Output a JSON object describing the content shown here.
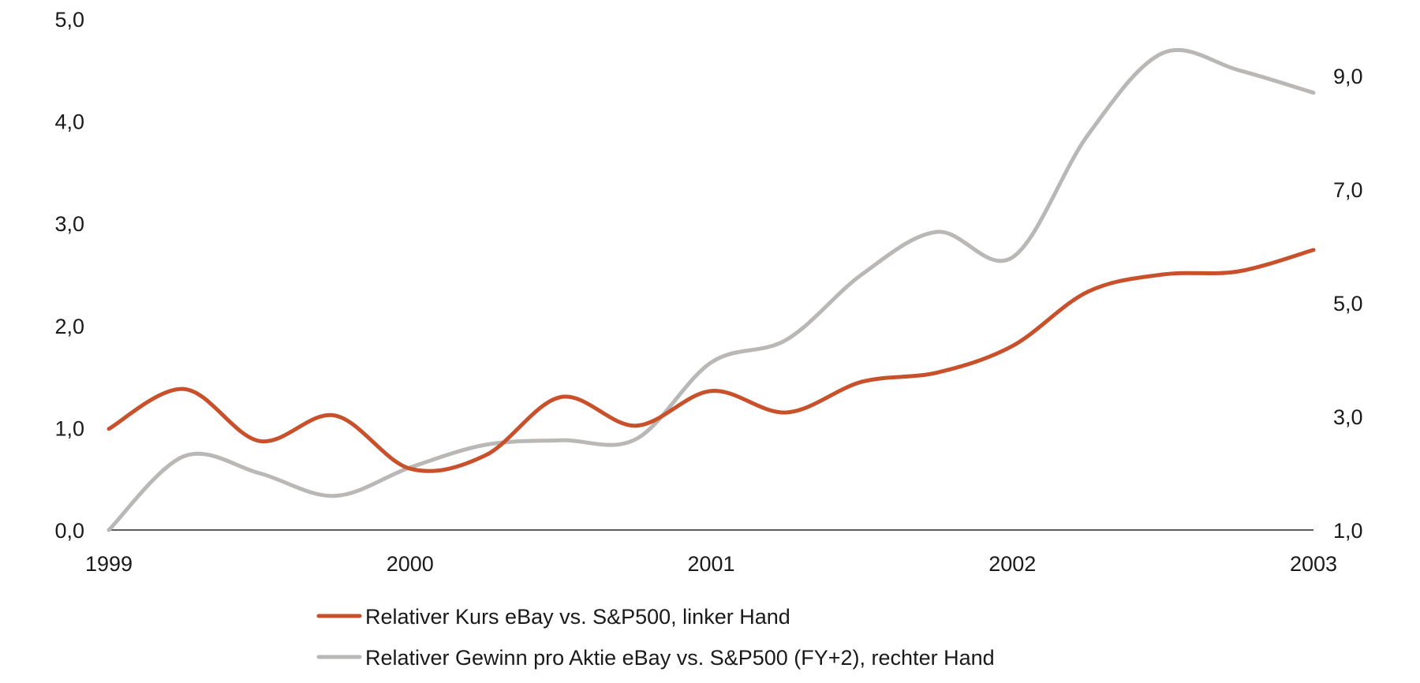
{
  "chart_data": {
    "type": "line",
    "title": "",
    "xlabel": "",
    "ylabel": "",
    "x_ticks": [
      "1999",
      "2000",
      "2001",
      "2002",
      "2003"
    ],
    "xlim": [
      1999,
      2003
    ],
    "y_left": {
      "ylim": [
        0,
        5
      ],
      "ticks": [
        "0,0",
        "1,0",
        "2,0",
        "3,0",
        "4,0",
        "5,0"
      ],
      "tick_values": [
        0,
        1,
        2,
        3,
        4,
        5
      ]
    },
    "y_right": {
      "ylim": [
        1,
        10
      ],
      "ticks": [
        "1,0",
        "3,0",
        "5,0",
        "7,0",
        "9,0"
      ],
      "tick_values": [
        1,
        3,
        5,
        7,
        9
      ]
    },
    "grid": false,
    "legend_position": "bottom",
    "series": [
      {
        "name": "Relativer Kurs eBay vs. S&P500, linker Hand",
        "axis": "left",
        "color": "#c8502a",
        "x": [
          1999.0,
          1999.25,
          1999.5,
          1999.75,
          2000.0,
          2000.25,
          2000.5,
          2000.75,
          2001.0,
          2001.25,
          2001.5,
          2001.75,
          2002.0,
          2002.25,
          2002.5,
          2002.75,
          2003.0
        ],
        "y": [
          0.99,
          1.38,
          0.87,
          1.12,
          0.6,
          0.73,
          1.3,
          1.02,
          1.36,
          1.15,
          1.45,
          1.54,
          1.8,
          2.33,
          2.5,
          2.53,
          2.74
        ]
      },
      {
        "name": "Relativer Gewinn pro Aktie eBay vs. S&P500 (FY+2), rechter Hand",
        "axis": "right",
        "color": "#b9b8b6",
        "x": [
          1999.0,
          1999.25,
          1999.5,
          1999.75,
          2000.0,
          2000.25,
          2000.5,
          2000.75,
          2001.0,
          2001.25,
          2001.5,
          2001.75,
          2002.0,
          2002.25,
          2002.5,
          2002.75,
          2003.0
        ],
        "y": [
          1.0,
          2.3,
          2.0,
          1.6,
          2.1,
          2.5,
          2.58,
          2.6,
          3.95,
          4.35,
          5.5,
          6.25,
          5.8,
          7.95,
          9.4,
          9.1,
          8.7
        ]
      }
    ]
  }
}
